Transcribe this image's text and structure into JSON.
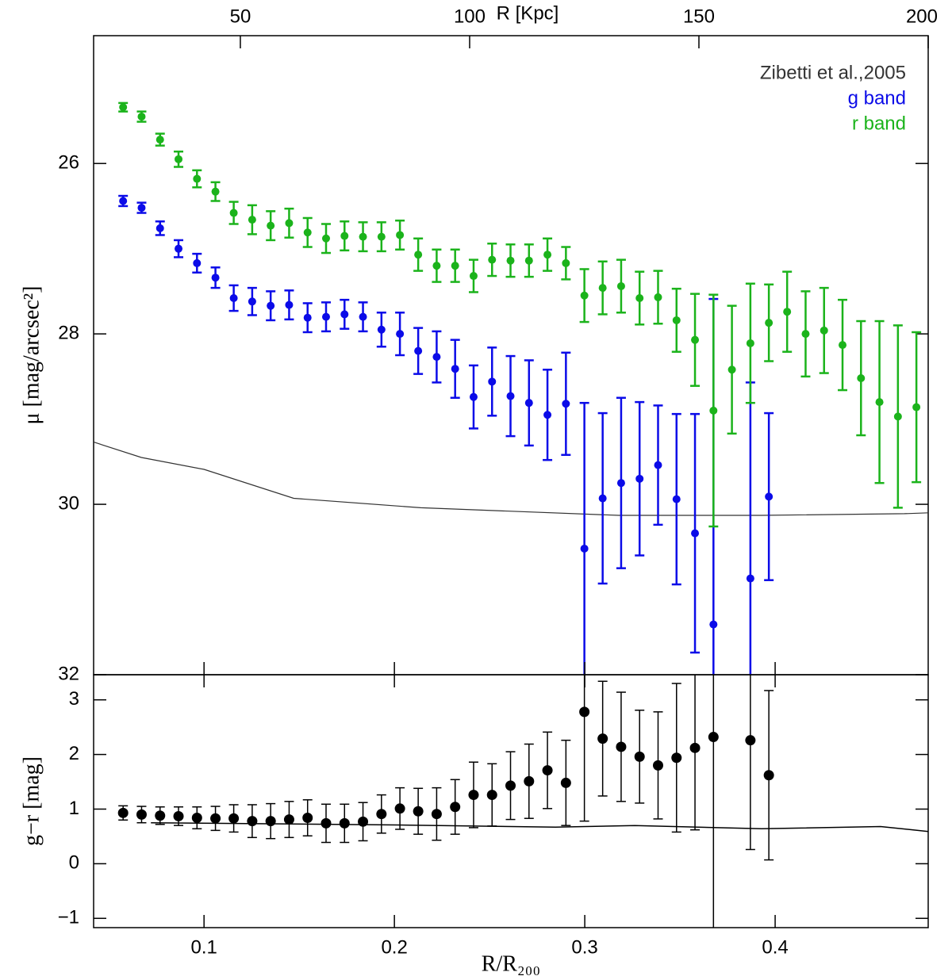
{
  "chart_data": [
    {
      "type": "scatter",
      "ylabel": "μ [mag/arcsec²]",
      "x2label": "R [Kpc]",
      "xlim": [
        0.042,
        0.4804
      ],
      "ylim": [
        32,
        24.5
      ],
      "yticks": [
        26,
        28,
        30,
        32
      ],
      "x2lim": [
        18,
        200
      ],
      "x2ticks": [
        50,
        100,
        150,
        200
      ],
      "legend": "upper right",
      "series": [
        {
          "name": "Zibetti et al.,2005",
          "type": "line",
          "color": "#333333",
          "x": [
            0.0421,
            0.0671,
            0.1,
            0.1471,
            0.2138,
            0.3179,
            0.3929,
            0.4679,
            0.4804
          ],
          "values": [
            29.27,
            29.45,
            29.59,
            29.93,
            30.04,
            30.13,
            30.13,
            30.11,
            30.1
          ]
        },
        {
          "name": "g band",
          "type": "errorbar",
          "color": "#0b0be8",
          "x": [
            0.0575,
            0.0672,
            0.0769,
            0.0866,
            0.0963,
            0.106,
            0.1156,
            0.1253,
            0.135,
            0.1447,
            0.1544,
            0.1641,
            0.1738,
            0.1835,
            0.1932,
            0.2029,
            0.2125,
            0.2222,
            0.2319,
            0.2416,
            0.2513,
            0.261,
            0.2707,
            0.2804,
            0.2901,
            0.2998,
            0.3094,
            0.3191,
            0.3288,
            0.3385,
            0.3482,
            0.3579,
            0.3676,
            0.3773,
            0.387,
            0.3967,
            0.4063,
            0.416,
            0.4257,
            0.4354,
            0.4451,
            0.4548,
            0.4645,
            0.4742
          ],
          "values": [
            26.44,
            26.52,
            26.76,
            27.0,
            27.17,
            27.34,
            27.58,
            27.62,
            27.67,
            27.66,
            27.81,
            27.8,
            27.77,
            27.8,
            27.95,
            28.0,
            28.2,
            28.27,
            28.41,
            28.74,
            28.56,
            28.73,
            28.81,
            28.95,
            28.82,
            30.52,
            29.93,
            29.75,
            29.7,
            29.54,
            29.94,
            30.34,
            31.41,
            null,
            30.87,
            29.91,
            null,
            null,
            null,
            null,
            null,
            null,
            null,
            null
          ],
          "errors": [
            0.06,
            0.06,
            0.08,
            0.1,
            0.11,
            0.12,
            0.15,
            0.16,
            0.17,
            0.17,
            0.17,
            0.17,
            0.17,
            0.17,
            0.2,
            0.25,
            0.27,
            0.3,
            0.34,
            0.37,
            0.4,
            0.47,
            0.5,
            0.53,
            0.6,
            1.71,
            1.0,
            1.0,
            0.9,
            0.7,
            1.0,
            1.4,
            3.82,
            null,
            2.3,
            0.98,
            null,
            null,
            null,
            null,
            null,
            null,
            null,
            null
          ]
        },
        {
          "name": "r band",
          "type": "errorbar",
          "color": "#1bb31b",
          "x": [
            0.0575,
            0.0672,
            0.0769,
            0.0866,
            0.0963,
            0.106,
            0.1156,
            0.1253,
            0.135,
            0.1447,
            0.1544,
            0.1641,
            0.1738,
            0.1835,
            0.1932,
            0.2029,
            0.2125,
            0.2222,
            0.2319,
            0.2416,
            0.2513,
            0.261,
            0.2707,
            0.2804,
            0.2901,
            0.2998,
            0.3094,
            0.3191,
            0.3288,
            0.3385,
            0.3482,
            0.3579,
            0.3676,
            0.3773,
            0.387,
            0.3967,
            0.4063,
            0.416,
            0.4257,
            0.4354,
            0.4451,
            0.4548,
            0.4645,
            0.4742
          ],
          "values": [
            25.34,
            25.45,
            25.72,
            25.95,
            26.18,
            26.33,
            26.58,
            26.66,
            26.73,
            26.7,
            26.81,
            26.88,
            26.85,
            26.86,
            26.86,
            26.84,
            27.07,
            27.2,
            27.2,
            27.32,
            27.13,
            27.14,
            27.14,
            27.07,
            27.17,
            27.55,
            27.46,
            27.44,
            27.58,
            27.57,
            27.84,
            28.07,
            28.9,
            28.42,
            28.11,
            27.87,
            27.74,
            28.0,
            27.96,
            28.13,
            28.52,
            28.8,
            28.97,
            28.86
          ],
          "errors": [
            0.05,
            0.06,
            0.07,
            0.09,
            0.1,
            0.11,
            0.13,
            0.17,
            0.17,
            0.17,
            0.17,
            0.17,
            0.17,
            0.17,
            0.17,
            0.17,
            0.19,
            0.19,
            0.19,
            0.19,
            0.19,
            0.19,
            0.19,
            0.19,
            0.19,
            0.31,
            0.31,
            0.31,
            0.31,
            0.31,
            0.37,
            0.54,
            1.36,
            0.75,
            0.7,
            0.45,
            0.47,
            0.5,
            0.5,
            0.53,
            0.67,
            0.95,
            1.07,
            0.88
          ]
        }
      ]
    },
    {
      "type": "scatter",
      "ylabel": "g−r [mag]",
      "xlabel": "R/R₂₀₀",
      "xlim": [
        0.042,
        0.4804
      ],
      "ylim": [
        -1.17,
        3.46
      ],
      "xticks": [
        0.1,
        0.2,
        0.3,
        0.4
      ],
      "yticks": [
        {
          "value": -1,
          "label": "−1"
        },
        0,
        1,
        2,
        3
      ],
      "series": [
        {
          "type": "line",
          "color": "#000000",
          "x": [
            0.0721,
            0.2013,
            0.2846,
            0.3263,
            0.3929,
            0.4554,
            0.4804
          ],
          "values": [
            0.75,
            0.71,
            0.67,
            0.7,
            0.64,
            0.68,
            0.59
          ]
        },
        {
          "type": "errorbar",
          "color": "#000000",
          "x": [
            0.0575,
            0.0672,
            0.0769,
            0.0866,
            0.0963,
            0.106,
            0.1156,
            0.1253,
            0.135,
            0.1447,
            0.1544,
            0.1641,
            0.1738,
            0.1835,
            0.1932,
            0.2029,
            0.2125,
            0.2222,
            0.2319,
            0.2416,
            0.2513,
            0.261,
            0.2707,
            0.2804,
            0.2901,
            0.2998,
            0.3094,
            0.3191,
            0.3288,
            0.3385,
            0.3482,
            0.3579,
            0.3676,
            0.3773,
            0.387,
            0.3967,
            0.4063,
            0.416,
            0.4257,
            0.4354,
            0.4451,
            0.4548,
            0.4645,
            0.4742
          ],
          "values": [
            0.93,
            0.9,
            0.88,
            0.87,
            0.84,
            0.83,
            0.83,
            0.78,
            0.78,
            0.81,
            0.84,
            0.74,
            0.74,
            0.77,
            0.91,
            1.01,
            0.96,
            0.91,
            1.04,
            1.26,
            1.26,
            1.43,
            1.51,
            1.71,
            1.48,
            2.78,
            2.29,
            2.14,
            1.96,
            1.8,
            1.94,
            2.12,
            2.32,
            null,
            2.26,
            1.62,
            null,
            null,
            null,
            null,
            null,
            null,
            null,
            null
          ],
          "errors": [
            0.13,
            0.15,
            0.16,
            0.17,
            0.2,
            0.22,
            0.25,
            0.3,
            0.32,
            0.33,
            0.33,
            0.35,
            0.35,
            0.35,
            0.35,
            0.38,
            0.42,
            0.48,
            0.5,
            0.6,
            0.57,
            0.62,
            0.68,
            0.7,
            0.78,
            2.0,
            1.05,
            1.0,
            0.85,
            0.98,
            1.36,
            1.5,
            3.5,
            null,
            2.0,
            1.55,
            null,
            null,
            null,
            null,
            null,
            null,
            null,
            null
          ]
        }
      ]
    }
  ]
}
